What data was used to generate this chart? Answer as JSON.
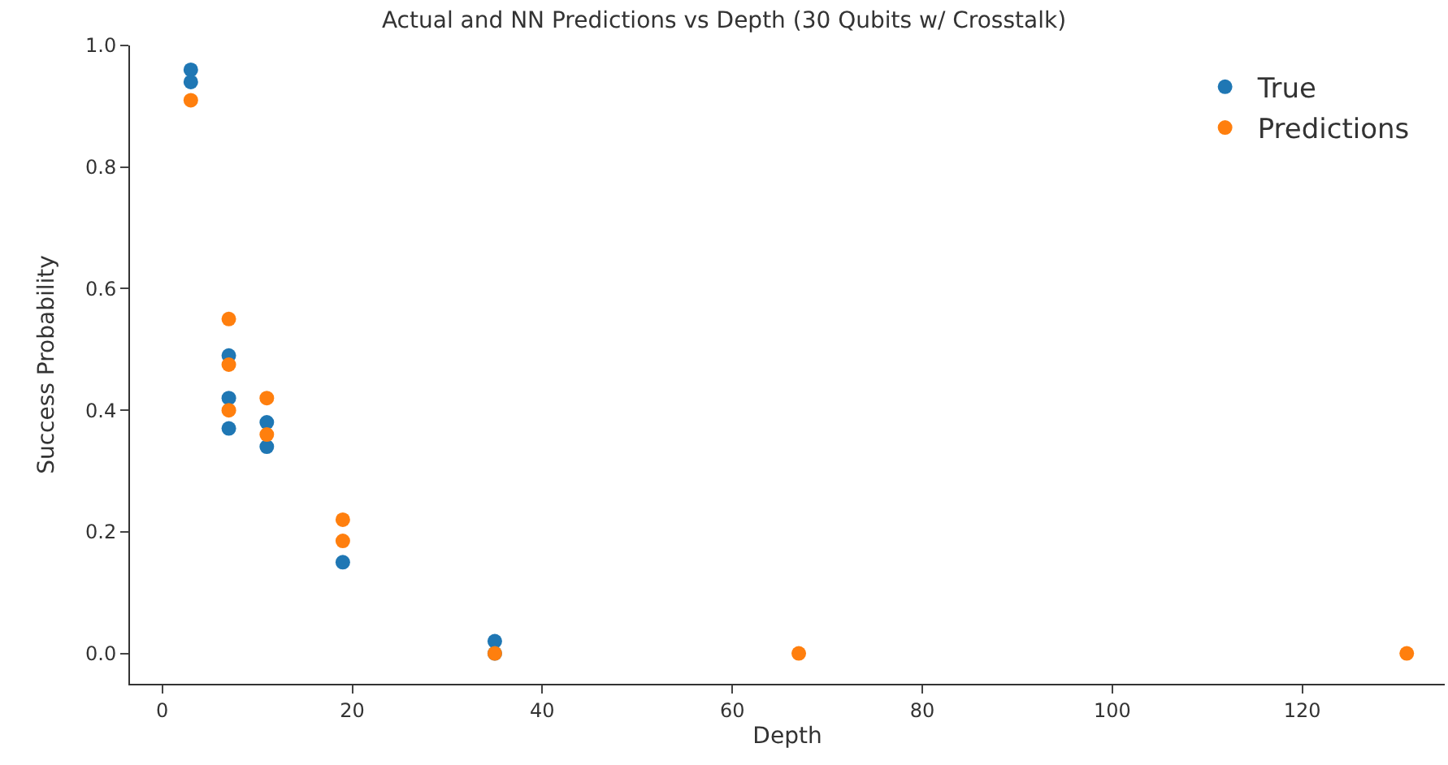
{
  "chart_data": {
    "type": "scatter",
    "title": "Actual and NN Predictions vs Depth (30 Qubits w/ Crosstalk)",
    "xlabel": "Depth",
    "ylabel": "Success Probability",
    "series": [
      {
        "name": "True",
        "color": "#1f77b4",
        "x": [
          3,
          3,
          7,
          7,
          7,
          11,
          11,
          19,
          35,
          35
        ],
        "values": [
          0.96,
          0.94,
          0.49,
          0.42,
          0.37,
          0.38,
          0.34,
          0.15,
          0.02,
          0.0
        ]
      },
      {
        "name": "Predictions",
        "color": "#ff7f0e",
        "x": [
          3,
          7,
          7,
          7,
          11,
          11,
          19,
          19,
          35,
          67,
          131
        ],
        "values": [
          0.91,
          0.55,
          0.475,
          0.4,
          0.42,
          0.36,
          0.22,
          0.185,
          0.0,
          0.0,
          0.0
        ]
      }
    ],
    "xlim": [
      -3.4,
      135
    ],
    "xticks": [
      0,
      20,
      40,
      60,
      80,
      100,
      120
    ],
    "ylim": [
      -0.05,
      1.0
    ],
    "yticks": [
      {
        "value": 0,
        "label": "0.0"
      },
      0.2,
      0.4,
      0.6,
      0.8,
      {
        "value": 1,
        "label": "1.0"
      }
    ],
    "legend": "top right",
    "marker": "circle"
  }
}
